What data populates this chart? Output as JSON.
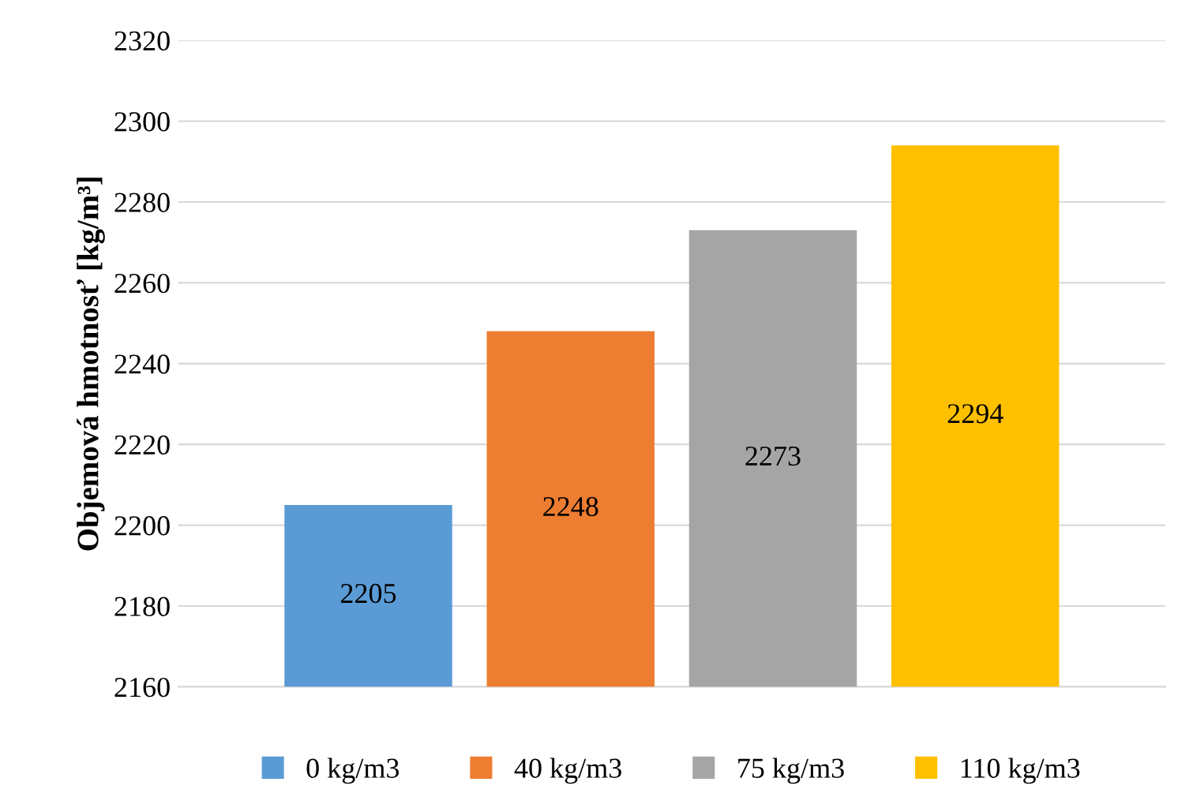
{
  "chart_data": {
    "type": "bar",
    "ylabel": "Objemová hmotnosť [kg/m³]",
    "categories": [
      null
    ],
    "series": [
      {
        "name": "0 kg/m3",
        "color": "#5b9bd5",
        "values": [
          2205
        ]
      },
      {
        "name": "40 kg/m3",
        "color": "#ed7d31",
        "values": [
          2248
        ]
      },
      {
        "name": "75 kg/m3",
        "color": "#a5a5a5",
        "values": [
          2273
        ]
      },
      {
        "name": "110 kg/m3",
        "color": "#ffc000",
        "values": [
          2294
        ]
      }
    ],
    "ylim": [
      2160,
      2320
    ],
    "yticks": [
      2160,
      2180,
      2200,
      2220,
      2240,
      2260,
      2280,
      2300,
      2320
    ],
    "grid": "y",
    "legend": "bottom",
    "data_labels": true
  }
}
